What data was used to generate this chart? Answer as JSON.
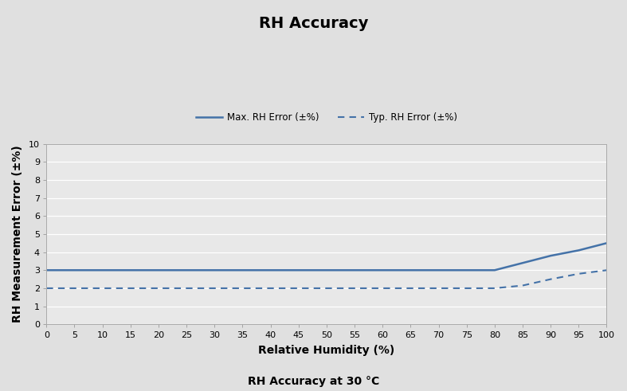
{
  "title": "RH Accuracy",
  "subtitle": "RH Accuracy at 30 °C",
  "xlabel": "Relative Humidity (%)",
  "ylabel": "RH Measurement Error (±%)",
  "xlim": [
    0,
    100
  ],
  "ylim": [
    0,
    10
  ],
  "xticks": [
    0,
    5,
    10,
    15,
    20,
    25,
    30,
    35,
    40,
    45,
    50,
    55,
    60,
    65,
    70,
    75,
    80,
    85,
    90,
    95,
    100
  ],
  "yticks": [
    0,
    1,
    2,
    3,
    4,
    5,
    6,
    7,
    8,
    9,
    10
  ],
  "max_line_x": [
    0,
    80,
    90,
    95,
    100
  ],
  "max_line_y": [
    3.0,
    3.0,
    3.8,
    4.1,
    4.5
  ],
  "typ_line_x": [
    0,
    80,
    85,
    90,
    95,
    100
  ],
  "typ_line_y": [
    2.0,
    2.0,
    2.15,
    2.5,
    2.8,
    3.0
  ],
  "line_color": "#4472a8",
  "legend_max_label": "Max. RH Error (±%)",
  "legend_typ_label": "Typ. RH Error (±%)",
  "background_color": "#e0e0e0",
  "plot_bg_color": "#e8e8e8",
  "grid_color": "#ffffff",
  "title_fontsize": 14,
  "label_fontsize": 10,
  "tick_fontsize": 8,
  "legend_fontsize": 8.5,
  "subtitle_fontsize": 10
}
